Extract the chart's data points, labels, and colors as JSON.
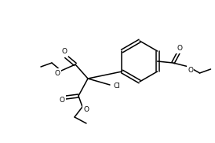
{
  "bg_color": "#ffffff",
  "line_color": "#000000",
  "lw": 1.1,
  "fs": 6.5,
  "figsize": [
    2.74,
    1.82
  ],
  "dpi": 100,
  "xlim": [
    0,
    274
  ],
  "ylim": [
    0,
    182
  ]
}
